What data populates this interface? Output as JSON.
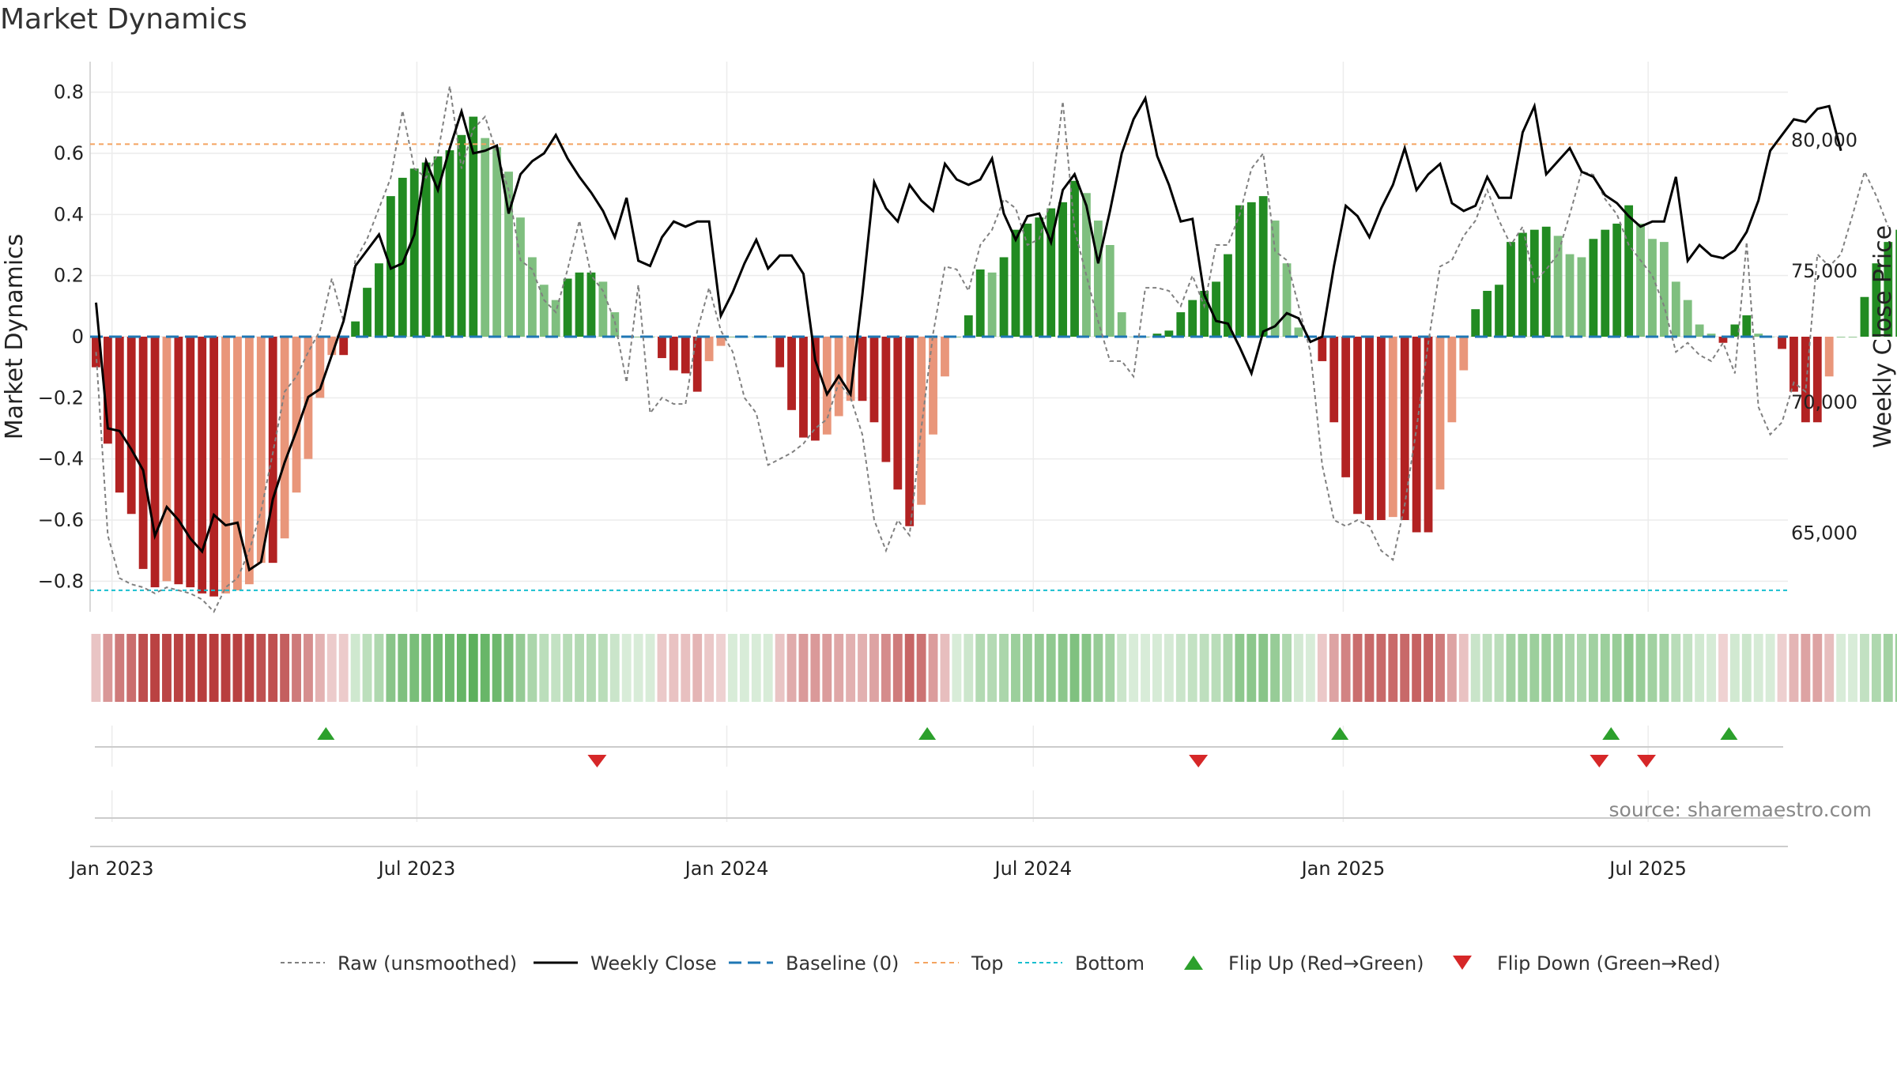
{
  "page": {
    "title": "Market Dynamics",
    "source": "source: sharemaestro.com"
  },
  "colors": {
    "strong_green": "#228b22",
    "weak_green": "#7fbf7f",
    "strong_red": "#b22222",
    "weak_red": "#e9967a",
    "top_line": "#f4a460",
    "bottom_line": "#17becf",
    "baseline": "#1f77b4",
    "close_line": "#000000",
    "raw_line": "#808080",
    "flip_up": "#2ca02c",
    "flip_down": "#d62728"
  },
  "chart_data": {
    "type": "bar",
    "title": "Market Dynamics",
    "ylabel": "Market Dynamics",
    "y2label": "Weekly Close Price",
    "ylim": [
      -0.9,
      0.9
    ],
    "y2lim": [
      62000,
      83000
    ],
    "x_start": "2022-12-19",
    "x_end": "2025-09-22",
    "start_week": "2022-12-19",
    "y_ticks": [
      -0.8,
      -0.6,
      -0.4,
      -0.2,
      0,
      0.2,
      0.4,
      0.6,
      0.8
    ],
    "y_tick_labels": [
      "−0.8",
      "−0.6",
      "−0.4",
      "−0.2",
      "0",
      "0.2",
      "0.4",
      "0.6",
      "0.8"
    ],
    "y2_ticks": [
      65000,
      70000,
      75000,
      80000
    ],
    "y2_tick_labels": [
      "65,000",
      "70,000",
      "75,000",
      "80,000"
    ],
    "x_ticks": [
      {
        "date": "2023-01-01",
        "label": "Jan 2023"
      },
      {
        "date": "2023-07-01",
        "label": "Jul 2023"
      },
      {
        "date": "2024-01-01",
        "label": "Jan 2024"
      },
      {
        "date": "2024-07-01",
        "label": "Jul 2024"
      },
      {
        "date": "2025-01-01",
        "label": "Jan 2025"
      },
      {
        "date": "2025-07-01",
        "label": "Jul 2025"
      }
    ],
    "top_level": 0.63,
    "bottom_level": -0.83,
    "baseline_level": 0,
    "dynamics": [
      -0.1,
      -0.35,
      -0.51,
      -0.58,
      -0.76,
      -0.82,
      -0.8,
      -0.81,
      -0.82,
      -0.84,
      -0.85,
      -0.84,
      -0.83,
      -0.81,
      -0.74,
      -0.74,
      -0.66,
      -0.51,
      -0.4,
      -0.2,
      -0.06,
      -0.06,
      0.05,
      0.16,
      0.24,
      0.46,
      0.52,
      0.55,
      0.57,
      0.59,
      0.61,
      0.66,
      0.72,
      0.65,
      0.62,
      0.54,
      0.39,
      0.26,
      0.17,
      0.12,
      0.19,
      0.21,
      0.21,
      0.18,
      0.08,
      0,
      0,
      0,
      -0.07,
      -0.11,
      -0.12,
      -0.18,
      -0.08,
      -0.03,
      0,
      0,
      0,
      0,
      -0.1,
      -0.24,
      -0.33,
      -0.34,
      -0.32,
      -0.26,
      -0.21,
      -0.21,
      -0.28,
      -0.41,
      -0.5,
      -0.62,
      -0.55,
      -0.32,
      -0.13,
      0,
      0.07,
      0.22,
      0.21,
      0.26,
      0.35,
      0.37,
      0.39,
      0.42,
      0.44,
      0.51,
      0.47,
      0.38,
      0.3,
      0.08,
      0,
      0,
      0.01,
      0.02,
      0.08,
      0.12,
      0.15,
      0.18,
      0.27,
      0.43,
      0.44,
      0.46,
      0.38,
      0.24,
      0.03,
      0,
      -0.08,
      -0.28,
      -0.46,
      -0.58,
      -0.6,
      -0.6,
      -0.59,
      -0.6,
      -0.64,
      -0.64,
      -0.5,
      -0.28,
      -0.11,
      0.09,
      0.15,
      0.17,
      0.31,
      0.34,
      0.35,
      0.36,
      0.33,
      0.27,
      0.26,
      0.32,
      0.35,
      0.37,
      0.43,
      0.37,
      0.32,
      0.31,
      0.18,
      0.12,
      0.04,
      0.01,
      -0.02,
      0.04,
      0.07,
      0.01,
      0,
      -0.04,
      -0.18,
      -0.28,
      -0.28,
      -0.13,
      0,
      0,
      0.13,
      0.24,
      0.31,
      0.35,
      0.32
    ],
    "raw": [
      -0.05,
      -0.65,
      -0.79,
      -0.81,
      -0.82,
      -0.84,
      -0.82,
      -0.83,
      -0.84,
      -0.86,
      -0.9,
      -0.82,
      -0.79,
      -0.7,
      -0.57,
      -0.38,
      -0.18,
      -0.13,
      -0.05,
      0.02,
      0.19,
      0.05,
      0.25,
      0.32,
      0.42,
      0.52,
      0.74,
      0.55,
      0.52,
      0.6,
      0.82,
      0.55,
      0.68,
      0.72,
      0.6,
      0.48,
      0.25,
      0.22,
      0.12,
      0.08,
      0.22,
      0.38,
      0.2,
      0.15,
      0.05,
      -0.15,
      0.17,
      -0.25,
      -0.2,
      -0.22,
      -0.22,
      0.02,
      0.16,
      0.02,
      -0.05,
      -0.2,
      -0.25,
      -0.42,
      -0.4,
      -0.38,
      -0.35,
      -0.3,
      -0.27,
      -0.15,
      -0.2,
      -0.32,
      -0.6,
      -0.7,
      -0.6,
      -0.65,
      -0.3,
      0.01,
      0.23,
      0.22,
      0.15,
      0.3,
      0.35,
      0.45,
      0.42,
      0.3,
      0.32,
      0.45,
      0.77,
      0.35,
      0.2,
      0.05,
      -0.08,
      -0.08,
      -0.13,
      0.16,
      0.16,
      0.15,
      0.1,
      0.2,
      0.1,
      0.3,
      0.3,
      0.4,
      0.55,
      0.6,
      0.28,
      0.25,
      0.1,
      -0.05,
      -0.42,
      -0.6,
      -0.62,
      -0.6,
      -0.62,
      -0.7,
      -0.73,
      -0.55,
      -0.3,
      -0.02,
      0.23,
      0.25,
      0.33,
      0.38,
      0.48,
      0.38,
      0.3,
      0.36,
      0.18,
      0.22,
      0.27,
      0.4,
      0.54,
      0.53,
      0.45,
      0.4,
      0.3,
      0.25,
      0.2,
      0.1,
      -0.05,
      -0.02,
      -0.06,
      -0.08,
      -0.02,
      -0.12,
      0.31,
      -0.23,
      -0.32,
      -0.28,
      -0.15,
      -0.18,
      0.27,
      0.23,
      0.27,
      0.4,
      0.54,
      0.46,
      0.36
    ],
    "close": [
      73800,
      69000,
      68900,
      68200,
      67400,
      64900,
      66000,
      65500,
      64800,
      64300,
      65700,
      65300,
      65400,
      63600,
      63900,
      66300,
      67700,
      68900,
      70200,
      70500,
      71800,
      73100,
      75200,
      75800,
      76400,
      75100,
      75300,
      76400,
      79200,
      78100,
      79700,
      81100,
      79500,
      79600,
      79800,
      77200,
      78700,
      79200,
      79500,
      80200,
      79300,
      78600,
      78000,
      77300,
      76300,
      77800,
      75400,
      75200,
      76300,
      76900,
      76700,
      76900,
      76900,
      73300,
      74200,
      75300,
      76200,
      75100,
      75600,
      75600,
      74900,
      71600,
      70300,
      71000,
      70300,
      74100,
      78400,
      77400,
      76900,
      78300,
      77700,
      77300,
      79100,
      78500,
      78300,
      78500,
      79300,
      77200,
      76200,
      77100,
      77200,
      76100,
      78100,
      78700,
      77500,
      75300,
      77300,
      79500,
      80800,
      81600,
      79400,
      78300,
      76900,
      77000,
      74100,
      73100,
      73000,
      72100,
      71100,
      72700,
      72900,
      73400,
      73200,
      72300,
      72500,
      75200,
      77500,
      77100,
      76300,
      77400,
      78300,
      79700,
      78100,
      78700,
      79100,
      77600,
      77300,
      77500,
      78600,
      77800,
      77800,
      80300,
      81300,
      78700,
      79200,
      79700,
      78800,
      78600,
      77900,
      77600,
      77100,
      76700,
      76900,
      76900,
      78600,
      75400,
      76000,
      75600,
      75500,
      75800,
      76500,
      77700,
      79600,
      80200,
      80800,
      80700,
      81200,
      81300,
      79600
    ],
    "flip_up_dates": [
      "2023-05-08",
      "2024-04-29",
      "2024-12-30",
      "2025-06-09",
      "2025-08-18"
    ],
    "flip_down_dates": [
      "2023-10-16",
      "2024-10-07",
      "2025-06-02",
      "2025-06-30"
    ]
  },
  "legend": {
    "items": [
      {
        "key": "raw",
        "label": "Raw (unsmoothed)"
      },
      {
        "key": "close",
        "label": "Weekly Close"
      },
      {
        "key": "baseline",
        "label": "Baseline (0)"
      },
      {
        "key": "top",
        "label": "Top"
      },
      {
        "key": "bottom",
        "label": "Bottom"
      },
      {
        "key": "flip_up",
        "label": "Flip Up (Red→Green)"
      },
      {
        "key": "flip_down",
        "label": "Flip Down (Green→Red)"
      }
    ]
  }
}
